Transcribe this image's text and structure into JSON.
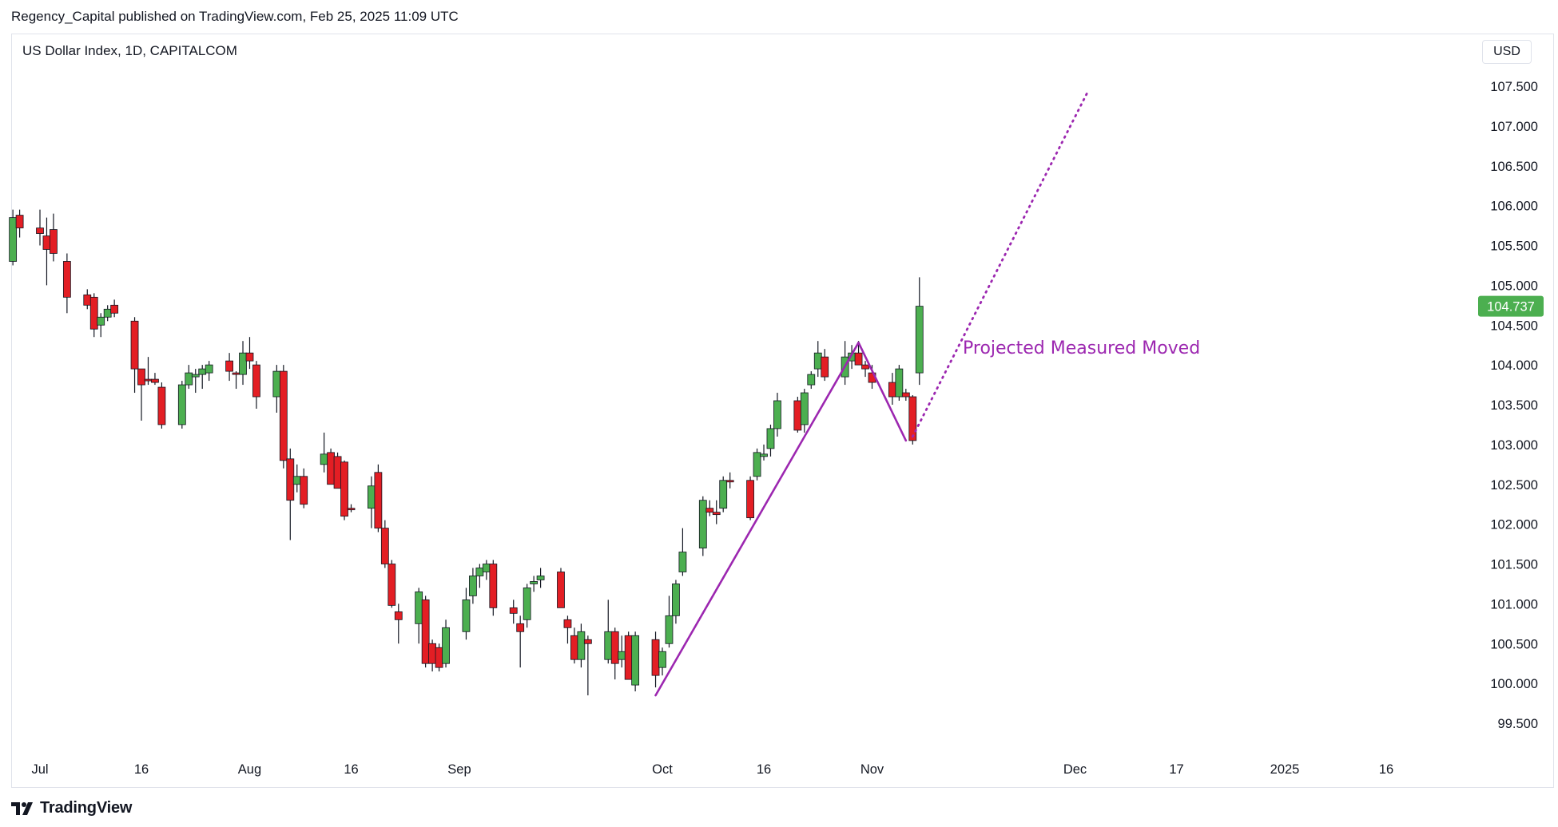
{
  "header": {
    "published_line": "Regency_Capital published on TradingView.com, Feb 25, 2025 11:09 UTC",
    "symbol_line": "US Dollar Index, 1D, CAPITALCOM",
    "currency": "USD"
  },
  "footer": {
    "logo_text": "TradingView"
  },
  "colors": {
    "up": "#4caf50",
    "down": "#e31e24",
    "wick": "#131722",
    "line": "#9c27b0",
    "price_tag": "#4caf50"
  },
  "chart_data": {
    "type": "candlestick",
    "title": "US Dollar Index, 1D, CAPITALCOM",
    "ylim": [
      99.2,
      108.4
    ],
    "y_ticks": [
      "107.500",
      "107.000",
      "106.500",
      "106.000",
      "105.500",
      "105.000",
      "104.500",
      "104.000",
      "103.500",
      "103.000",
      "102.500",
      "102.000",
      "101.500",
      "101.000",
      "100.500",
      "100.000",
      "99.500"
    ],
    "x_start": "2024-06-27",
    "x_end": "2025-01-23",
    "x_ticks": [
      {
        "date": "2024-07-01",
        "label": "Jul"
      },
      {
        "date": "2024-07-16",
        "label": "16"
      },
      {
        "date": "2024-08-01",
        "label": "Aug"
      },
      {
        "date": "2024-08-16",
        "label": "16"
      },
      {
        "date": "2024-09-01",
        "label": "Sep"
      },
      {
        "date": "2024-10-01",
        "label": "Oct"
      },
      {
        "date": "2024-10-16",
        "label": "16"
      },
      {
        "date": "2024-11-01",
        "label": "Nov"
      },
      {
        "date": "2024-12-01",
        "label": "Dec"
      },
      {
        "date": "2024-12-16",
        "label": "17"
      },
      {
        "date": "2025-01-01",
        "label": "2025"
      },
      {
        "date": "2025-01-16",
        "label": "16"
      }
    ],
    "last_price": "104.737",
    "candles": [
      {
        "t": "2024-06-27",
        "o": 105.3,
        "h": 105.95,
        "l": 105.25,
        "c": 105.85
      },
      {
        "t": "2024-06-28",
        "o": 105.88,
        "h": 105.95,
        "l": 105.6,
        "c": 105.72
      },
      {
        "t": "2024-07-01",
        "o": 105.72,
        "h": 105.95,
        "l": 105.5,
        "c": 105.65
      },
      {
        "t": "2024-07-02",
        "o": 105.62,
        "h": 105.85,
        "l": 105.0,
        "c": 105.45
      },
      {
        "t": "2024-07-03",
        "o": 105.7,
        "h": 105.9,
        "l": 105.3,
        "c": 105.4
      },
      {
        "t": "2024-07-05",
        "o": 105.3,
        "h": 105.4,
        "l": 104.65,
        "c": 104.85
      },
      {
        "t": "2024-07-08",
        "o": 104.88,
        "h": 104.95,
        "l": 104.7,
        "c": 104.75
      },
      {
        "t": "2024-07-09",
        "o": 104.85,
        "h": 104.9,
        "l": 104.35,
        "c": 104.45
      },
      {
        "t": "2024-07-10",
        "o": 104.5,
        "h": 104.65,
        "l": 104.35,
        "c": 104.6
      },
      {
        "t": "2024-07-11",
        "o": 104.6,
        "h": 104.75,
        "l": 104.55,
        "c": 104.7
      },
      {
        "t": "2024-07-12",
        "o": 104.75,
        "h": 104.82,
        "l": 104.6,
        "c": 104.65
      },
      {
        "t": "2024-07-15",
        "o": 104.55,
        "h": 104.6,
        "l": 103.65,
        "c": 103.95
      },
      {
        "t": "2024-07-16",
        "o": 103.95,
        "h": 103.95,
        "l": 103.3,
        "c": 103.75
      },
      {
        "t": "2024-07-17",
        "o": 103.82,
        "h": 104.1,
        "l": 103.75,
        "c": 103.8
      },
      {
        "t": "2024-07-18",
        "o": 103.82,
        "h": 103.9,
        "l": 103.75,
        "c": 103.78
      },
      {
        "t": "2024-07-19",
        "o": 103.72,
        "h": 103.78,
        "l": 103.2,
        "c": 103.25
      },
      {
        "t": "2024-07-22",
        "o": 103.25,
        "h": 103.8,
        "l": 103.2,
        "c": 103.75
      },
      {
        "t": "2024-07-23",
        "o": 103.75,
        "h": 104.0,
        "l": 103.7,
        "c": 103.9
      },
      {
        "t": "2024-07-24",
        "o": 103.85,
        "h": 103.95,
        "l": 103.65,
        "c": 103.88
      },
      {
        "t": "2024-07-25",
        "o": 103.88,
        "h": 104.0,
        "l": 103.7,
        "c": 103.95
      },
      {
        "t": "2024-07-26",
        "o": 103.9,
        "h": 104.05,
        "l": 103.8,
        "c": 104.0
      },
      {
        "t": "2024-07-29",
        "o": 104.05,
        "h": 104.15,
        "l": 103.8,
        "c": 103.92
      },
      {
        "t": "2024-07-30",
        "o": 103.9,
        "h": 103.92,
        "l": 103.7,
        "c": 103.88
      },
      {
        "t": "2024-07-31",
        "o": 103.88,
        "h": 104.3,
        "l": 103.75,
        "c": 104.15
      },
      {
        "t": "2024-08-01",
        "o": 104.15,
        "h": 104.35,
        "l": 103.95,
        "c": 104.05
      },
      {
        "t": "2024-08-02",
        "o": 104.0,
        "h": 104.05,
        "l": 103.45,
        "c": 103.6
      },
      {
        "t": "2024-08-05",
        "o": 103.6,
        "h": 104.0,
        "l": 103.4,
        "c": 103.92
      },
      {
        "t": "2024-08-06",
        "o": 103.92,
        "h": 104.0,
        "l": 102.7,
        "c": 102.8
      },
      {
        "t": "2024-08-07",
        "o": 102.82,
        "h": 102.95,
        "l": 101.8,
        "c": 102.3
      },
      {
        "t": "2024-08-08",
        "o": 102.5,
        "h": 102.75,
        "l": 102.4,
        "c": 102.6
      },
      {
        "t": "2024-08-09",
        "o": 102.6,
        "h": 102.7,
        "l": 102.2,
        "c": 102.25
      },
      {
        "t": "2024-08-12",
        "o": 102.75,
        "h": 103.15,
        "l": 102.65,
        "c": 102.88
      },
      {
        "t": "2024-08-13",
        "o": 102.9,
        "h": 102.95,
        "l": 102.5,
        "c": 102.5
      },
      {
        "t": "2024-08-14",
        "o": 102.85,
        "h": 102.9,
        "l": 102.45,
        "c": 102.45
      },
      {
        "t": "2024-08-15",
        "o": 102.78,
        "h": 102.8,
        "l": 102.05,
        "c": 102.1
      },
      {
        "t": "2024-08-16",
        "o": 102.2,
        "h": 102.25,
        "l": 102.15,
        "c": 102.18
      },
      {
        "t": "2024-08-19",
        "o": 102.2,
        "h": 102.6,
        "l": 101.95,
        "c": 102.48
      },
      {
        "t": "2024-08-20",
        "o": 102.65,
        "h": 102.75,
        "l": 101.9,
        "c": 101.95
      },
      {
        "t": "2024-08-21",
        "o": 101.95,
        "h": 102.05,
        "l": 101.45,
        "c": 101.5
      },
      {
        "t": "2024-08-22",
        "o": 101.5,
        "h": 101.55,
        "l": 100.95,
        "c": 100.98
      },
      {
        "t": "2024-08-23",
        "o": 100.9,
        "h": 101.0,
        "l": 100.5,
        "c": 100.8
      },
      {
        "t": "2024-08-26",
        "o": 100.75,
        "h": 101.2,
        "l": 100.5,
        "c": 101.15
      },
      {
        "t": "2024-08-27",
        "o": 101.05,
        "h": 101.1,
        "l": 100.2,
        "c": 100.25
      },
      {
        "t": "2024-08-28",
        "o": 100.5,
        "h": 100.55,
        "l": 100.15,
        "c": 100.25
      },
      {
        "t": "2024-08-29",
        "o": 100.45,
        "h": 100.5,
        "l": 100.15,
        "c": 100.2
      },
      {
        "t": "2024-08-30",
        "o": 100.25,
        "h": 100.8,
        "l": 100.2,
        "c": 100.7
      },
      {
        "t": "2024-09-02",
        "o": 100.65,
        "h": 101.2,
        "l": 100.55,
        "c": 101.05
      },
      {
        "t": "2024-09-03",
        "o": 101.1,
        "h": 101.45,
        "l": 101.0,
        "c": 101.35
      },
      {
        "t": "2024-09-04",
        "o": 101.35,
        "h": 101.5,
        "l": 101.2,
        "c": 101.45
      },
      {
        "t": "2024-09-05",
        "o": 101.4,
        "h": 101.55,
        "l": 101.3,
        "c": 101.5
      },
      {
        "t": "2024-09-06",
        "o": 101.5,
        "h": 101.55,
        "l": 100.85,
        "c": 100.95
      },
      {
        "t": "2024-09-09",
        "o": 100.95,
        "h": 101.05,
        "l": 100.75,
        "c": 100.88
      },
      {
        "t": "2024-09-10",
        "o": 100.75,
        "h": 100.85,
        "l": 100.2,
        "c": 100.65
      },
      {
        "t": "2024-09-11",
        "o": 100.8,
        "h": 101.25,
        "l": 100.7,
        "c": 101.2
      },
      {
        "t": "2024-09-12",
        "o": 101.25,
        "h": 101.35,
        "l": 101.15,
        "c": 101.28
      },
      {
        "t": "2024-09-13",
        "o": 101.3,
        "h": 101.45,
        "l": 101.2,
        "c": 101.35
      },
      {
        "t": "2024-09-16",
        "o": 101.4,
        "h": 101.45,
        "l": 100.95,
        "c": 100.95
      },
      {
        "t": "2024-09-17",
        "o": 100.8,
        "h": 100.85,
        "l": 100.5,
        "c": 100.7
      },
      {
        "t": "2024-09-18",
        "o": 100.6,
        "h": 100.7,
        "l": 100.25,
        "c": 100.3
      },
      {
        "t": "2024-09-19",
        "o": 100.3,
        "h": 100.75,
        "l": 100.2,
        "c": 100.65
      },
      {
        "t": "2024-09-20",
        "o": 100.55,
        "h": 100.6,
        "l": 99.85,
        "c": 100.5
      },
      {
        "t": "2024-09-23",
        "o": 100.3,
        "h": 101.05,
        "l": 100.25,
        "c": 100.65
      },
      {
        "t": "2024-09-24",
        "o": 100.65,
        "h": 100.7,
        "l": 100.05,
        "c": 100.25
      },
      {
        "t": "2024-09-25",
        "o": 100.3,
        "h": 100.6,
        "l": 100.2,
        "c": 100.4
      },
      {
        "t": "2024-09-26",
        "o": 100.6,
        "h": 100.65,
        "l": 100.05,
        "c": 100.05
      },
      {
        "t": "2024-09-27",
        "o": 99.98,
        "h": 100.65,
        "l": 99.9,
        "c": 100.6
      },
      {
        "t": "2024-09-30",
        "o": 100.55,
        "h": 100.65,
        "l": 99.95,
        "c": 100.1
      },
      {
        "t": "2024-10-01",
        "o": 100.2,
        "h": 100.45,
        "l": 100.1,
        "c": 100.4
      },
      {
        "t": "2024-10-02",
        "o": 100.5,
        "h": 101.1,
        "l": 100.45,
        "c": 100.85
      },
      {
        "t": "2024-10-03",
        "o": 100.85,
        "h": 101.3,
        "l": 100.75,
        "c": 101.25
      },
      {
        "t": "2024-10-04",
        "o": 101.4,
        "h": 101.95,
        "l": 101.35,
        "c": 101.65
      },
      {
        "t": "2024-10-07",
        "o": 101.7,
        "h": 102.35,
        "l": 101.6,
        "c": 102.3
      },
      {
        "t": "2024-10-08",
        "o": 102.2,
        "h": 102.3,
        "l": 102.1,
        "c": 102.15
      },
      {
        "t": "2024-10-09",
        "o": 102.15,
        "h": 102.3,
        "l": 102.0,
        "c": 102.12
      },
      {
        "t": "2024-10-10",
        "o": 102.2,
        "h": 102.6,
        "l": 102.15,
        "c": 102.55
      },
      {
        "t": "2024-10-11",
        "o": 102.55,
        "h": 102.65,
        "l": 102.45,
        "c": 102.53
      },
      {
        "t": "2024-10-14",
        "o": 102.55,
        "h": 102.6,
        "l": 102.05,
        "c": 102.08
      },
      {
        "t": "2024-10-15",
        "o": 102.6,
        "h": 102.95,
        "l": 102.55,
        "c": 102.9
      },
      {
        "t": "2024-10-16",
        "o": 102.85,
        "h": 103.0,
        "l": 102.8,
        "c": 102.88
      },
      {
        "t": "2024-10-17",
        "o": 102.95,
        "h": 103.25,
        "l": 102.85,
        "c": 103.2
      },
      {
        "t": "2024-10-18",
        "o": 103.2,
        "h": 103.65,
        "l": 103.1,
        "c": 103.55
      },
      {
        "t": "2024-10-21",
        "o": 103.55,
        "h": 103.6,
        "l": 103.15,
        "c": 103.18
      },
      {
        "t": "2024-10-22",
        "o": 103.25,
        "h": 103.7,
        "l": 103.15,
        "c": 103.65
      },
      {
        "t": "2024-10-23",
        "o": 103.75,
        "h": 103.92,
        "l": 103.7,
        "c": 103.88
      },
      {
        "t": "2024-10-24",
        "o": 103.95,
        "h": 104.3,
        "l": 103.85,
        "c": 104.15
      },
      {
        "t": "2024-10-25",
        "o": 104.1,
        "h": 104.2,
        "l": 103.8,
        "c": 103.85
      },
      {
        "t": "2024-10-28",
        "o": 103.85,
        "h": 104.3,
        "l": 103.75,
        "c": 104.1
      },
      {
        "t": "2024-10-29",
        "o": 104.05,
        "h": 104.25,
        "l": 103.95,
        "c": 104.15
      },
      {
        "t": "2024-10-30",
        "o": 104.15,
        "h": 104.3,
        "l": 104.0,
        "c": 104.0
      },
      {
        "t": "2024-10-31",
        "o": 104.0,
        "h": 104.05,
        "l": 103.85,
        "c": 103.95
      },
      {
        "t": "2024-11-01",
        "o": 103.9,
        "h": 104.0,
        "l": 103.7,
        "c": 103.78
      },
      {
        "t": "2024-11-04",
        "o": 103.78,
        "h": 103.9,
        "l": 103.5,
        "c": 103.6
      },
      {
        "t": "2024-11-05",
        "o": 103.6,
        "h": 104.0,
        "l": 103.55,
        "c": 103.95
      },
      {
        "t": "2024-11-06",
        "o": 103.65,
        "h": 103.7,
        "l": 103.55,
        "c": 103.6
      },
      {
        "t": "2024-11-07",
        "o": 103.6,
        "h": 103.62,
        "l": 103.0,
        "c": 103.05
      },
      {
        "t": "2024-11-08",
        "o": 103.9,
        "h": 105.1,
        "l": 103.75,
        "c": 104.737
      }
    ],
    "drawings": {
      "impulse_line": [
        {
          "t": "2024-09-30",
          "v": 99.85
        },
        {
          "t": "2024-10-30",
          "v": 104.28
        }
      ],
      "pullback_line": [
        {
          "t": "2024-10-30",
          "v": 104.28
        },
        {
          "t": "2024-11-06",
          "v": 103.05
        }
      ],
      "projection_line": [
        {
          "t": "2024-11-07",
          "v": 103.1
        },
        {
          "t": "2024-12-03",
          "v": 107.45
        }
      ]
    },
    "annotation": "Projected Measured Moved"
  }
}
